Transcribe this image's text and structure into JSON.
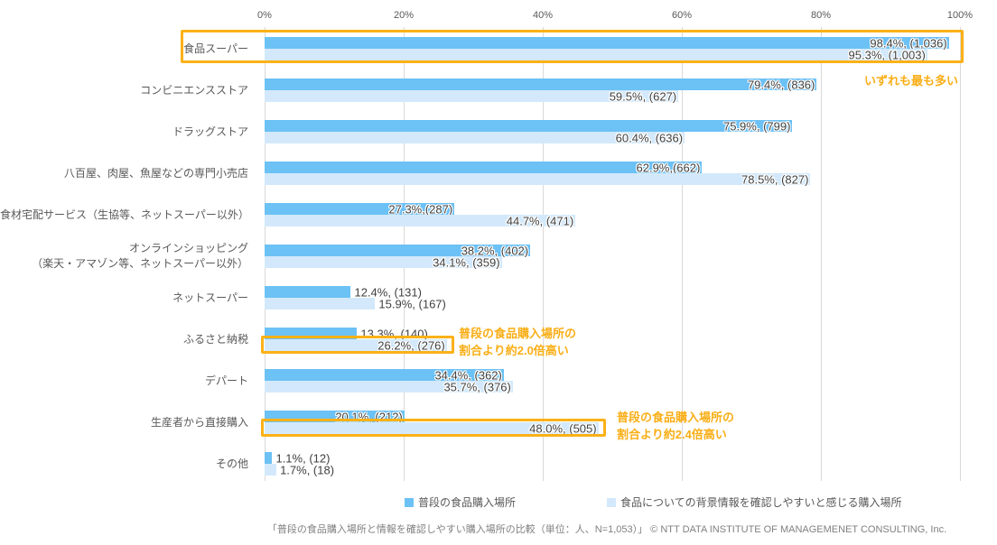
{
  "chart_data": {
    "type": "bar",
    "orientation": "horizontal",
    "title": "",
    "xlabel": "",
    "ylabel": "",
    "xlim": [
      0,
      100
    ],
    "x_ticks": [
      "0%",
      "20%",
      "40%",
      "60%",
      "80%",
      "100%"
    ],
    "grid": "vertical",
    "legend_position": "bottom",
    "categories": [
      "食品スーパー",
      "コンビニエンスストア",
      "ドラッグストア",
      "八百屋、肉屋、魚屋などの専門小売店",
      "食材宅配サービス（生協等、ネットスーパー以外）",
      "オンラインショッピング\n（楽天・アマゾン等、ネットスーパー以外）",
      "ネットスーパー",
      "ふるさと納税",
      "デパート",
      "生産者から直接購入",
      "その他"
    ],
    "series": [
      {
        "name": "普段の食品購入場所",
        "color": "#6cc1f5",
        "values": [
          98.4,
          79.4,
          75.9,
          62.9,
          27.3,
          38.2,
          12.4,
          13.3,
          34.4,
          20.1,
          1.1
        ],
        "counts": [
          1036,
          836,
          799,
          662,
          287,
          402,
          131,
          140,
          362,
          212,
          12
        ],
        "data_labels": [
          "98.4%, (1,036)",
          "79.4%, (836)",
          "75.9%, (799)",
          "62.9%,(662)",
          "27.3%,(287)",
          "38.2%, (402)",
          "12.4%, (131)",
          "13.3%, (140)",
          "34.4%, (362)",
          "20.1%, (212)",
          "1.1%, (12)"
        ],
        "label_inside": [
          true,
          true,
          true,
          true,
          true,
          true,
          false,
          false,
          true,
          true,
          false
        ]
      },
      {
        "name": "食品についての背景情報を確認しやすいと感じる購入場所",
        "color": "#d3e9fb",
        "values": [
          95.3,
          59.5,
          60.4,
          78.5,
          44.7,
          34.1,
          15.9,
          26.2,
          35.7,
          48.0,
          1.7
        ],
        "counts": [
          1003,
          627,
          636,
          827,
          471,
          359,
          167,
          276,
          376,
          505,
          18
        ],
        "data_labels": [
          "95.3%, (1,003)",
          "59.5%, (627)",
          "60.4%, (636)",
          "78.5%, (827)",
          "44.7%, (471)",
          "34.1%, (359)",
          "15.9%, (167)",
          "26.2%, (276)",
          "35.7%, (376)",
          "48.0%, (505)",
          "1.7%, (18)"
        ],
        "label_inside": [
          true,
          true,
          true,
          true,
          true,
          true,
          false,
          true,
          true,
          true,
          false
        ]
      }
    ],
    "annotations": [
      {
        "text": "いずれも最も多い"
      },
      {
        "text": "普段の食品購入場所の\n割合より約2.0倍高い"
      },
      {
        "text": "普段の食品購入場所の\n割合より約2.4倍高い"
      }
    ],
    "highlights": [
      {
        "target": "食品スーパー（両系列）"
      },
      {
        "target": "ふるさと納税（背景情報を確認しやすい場所）"
      },
      {
        "target": "生産者から直接購入（背景情報を確認しやすい場所）"
      }
    ]
  },
  "colors": {
    "series1": "#6cc1f5",
    "series2": "#d3e9fb",
    "accent_orange": "#f9ae16",
    "highlight_border": "#fbb117",
    "gridline": "#d9d9d9"
  },
  "footer": {
    "text": "「普段の食品購入場所と情報を確認しやすい購入場所の比較（単位：人、N=1,053）」 © NTT DATA INSTITUTE OF MANAGEMENET CONSULTING, Inc."
  }
}
